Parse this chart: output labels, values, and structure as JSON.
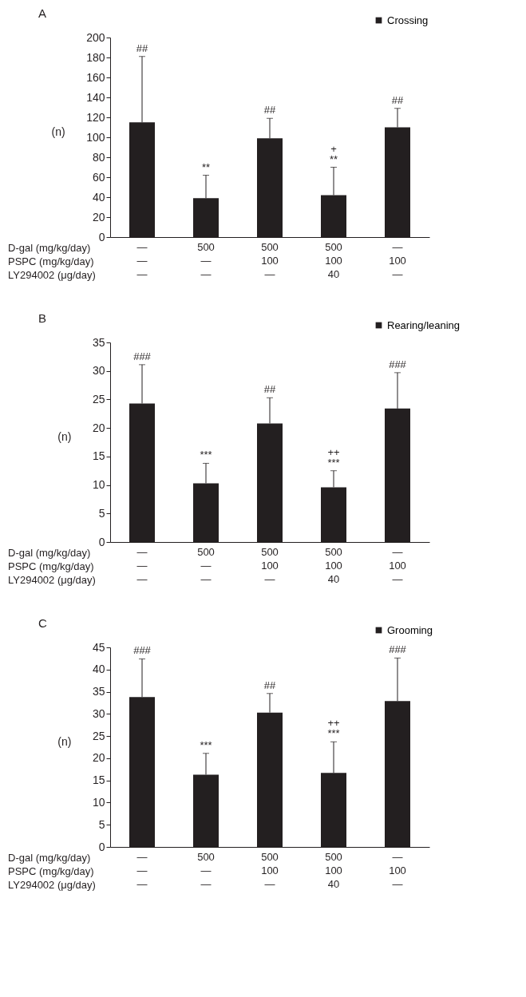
{
  "chart_data": [
    {
      "type": "bar",
      "title": "A",
      "ylabel": "(n)",
      "legend": "top right",
      "categories": [
        "—\n—\n—",
        "500\n—\n—",
        "500\n100\n—",
        "500\n100\n40",
        "—\n100\n—"
      ],
      "series": [
        {
          "name": "Crossing",
          "color": "#231f20",
          "values": [
            115,
            39,
            99,
            42,
            110
          ],
          "errors": [
            [
              115,
              181
            ],
            [
              39,
              62
            ],
            [
              99,
              119
            ],
            [
              42,
              70
            ],
            [
              110,
              129
            ]
          ]
        }
      ],
      "ylim": [
        0,
        200
      ],
      "yticks": [
        0,
        20,
        40,
        60,
        80,
        100,
        120,
        140,
        160,
        180,
        200
      ],
      "annotations": [
        "D-gal (mg/kg/day)",
        "PSPC (mg/kg/day)",
        "LY294002 (μg/day)",
        {
          "text": "##",
          "x": "—\n—\n—",
          "y": 181
        },
        {
          "text": "**",
          "x": "500\n—\n—",
          "y": 62
        },
        {
          "text": "##",
          "x": "500\n100\n—",
          "y": 119
        },
        {
          "text": "**",
          "x": "500\n100\n40",
          "y": 70
        },
        {
          "text": "+",
          "x": "500\n100\n40",
          "y": 70
        },
        {
          "text": "##",
          "x": "—\n100\n—",
          "y": 129
        }
      ]
    },
    {
      "type": "bar",
      "title": "B",
      "ylabel": "(n)",
      "legend": "top right",
      "categories": [
        "—\n—\n—",
        "500\n—\n—",
        "500\n100\n—",
        "500\n100\n40",
        "—\n100\n—"
      ],
      "series": [
        {
          "name": "Rearing/leaning",
          "color": "#231f20",
          "values": [
            24.3,
            10.3,
            20.8,
            9.6,
            23.4
          ],
          "errors": [
            [
              24.3,
              31.1
            ],
            [
              10.3,
              13.8
            ],
            [
              20.8,
              25.3
            ],
            [
              9.6,
              12.5
            ],
            [
              23.4,
              29.7
            ]
          ]
        }
      ],
      "ylim": [
        0,
        35
      ],
      "yticks": [
        0,
        5,
        10,
        15,
        20,
        25,
        30,
        35
      ],
      "annotations": [
        "D-gal (mg/kg/day)",
        "PSPC (mg/kg/day)",
        "LY294002 (μg/day)",
        {
          "text": "###",
          "x": "—\n—\n—",
          "y": 31.1
        },
        {
          "text": "***",
          "x": "500\n—\n—",
          "y": 13.8
        },
        {
          "text": "##",
          "x": "500\n100\n—",
          "y": 25.3
        },
        {
          "text": "***",
          "x": "500\n100\n40",
          "y": 12.5
        },
        {
          "text": "++",
          "x": "500\n100\n40",
          "y": 12.5
        },
        {
          "text": "###",
          "x": "—\n100\n—",
          "y": 29.7
        }
      ]
    },
    {
      "type": "bar",
      "title": "C",
      "ylabel": "(n)",
      "legend": "top right",
      "categories": [
        "—\n—\n—",
        "500\n—\n—",
        "500\n100\n—",
        "500\n100\n40",
        "—\n100\n—"
      ],
      "series": [
        {
          "name": "Grooming",
          "color": "#231f20",
          "values": [
            33.8,
            16.3,
            30.3,
            16.7,
            32.9
          ],
          "errors": [
            [
              33.8,
              42.4
            ],
            [
              16.3,
              21.1
            ],
            [
              30.3,
              34.6
            ],
            [
              16.7,
              23.7
            ],
            [
              32.9,
              42.6
            ]
          ]
        }
      ],
      "ylim": [
        0,
        45
      ],
      "yticks": [
        0,
        5,
        10,
        15,
        20,
        25,
        30,
        35,
        40,
        45
      ],
      "annotations": [
        "D-gal (mg/kg/day)",
        "PSPC (mg/kg/day)",
        "LY294002 (μg/day)",
        {
          "text": "###",
          "x": "—\n—\n—",
          "y": 42.4
        },
        {
          "text": "***",
          "x": "500\n—\n—",
          "y": 21.1
        },
        {
          "text": "##",
          "x": "500\n100\n—",
          "y": 34.6
        },
        {
          "text": "***",
          "x": "500\n100\n40",
          "y": 23.7
        },
        {
          "text": "++",
          "x": "500\n100\n40",
          "y": 23.7
        },
        {
          "text": "###",
          "x": "—\n100\n—",
          "y": 42.6
        }
      ]
    }
  ]
}
